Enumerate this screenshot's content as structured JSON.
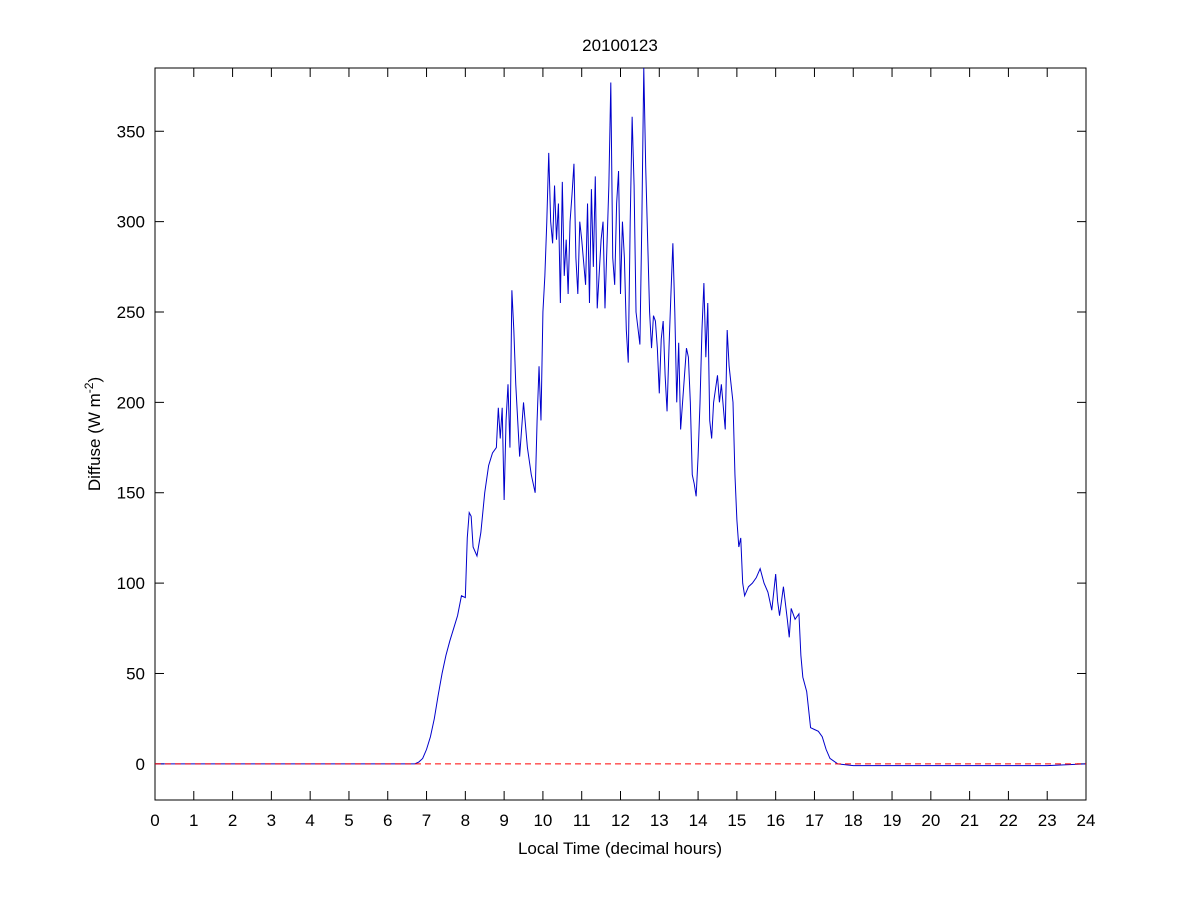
{
  "chart_data": {
    "type": "line",
    "title": "20100123",
    "xlabel": "Local Time (decimal hours)",
    "ylabel": {
      "text": "Diffuse (W m",
      "sup": "-2",
      "end": ")"
    },
    "xlim": [
      0,
      24
    ],
    "xticks": [
      0,
      1,
      2,
      3,
      4,
      5,
      6,
      7,
      8,
      9,
      10,
      11,
      12,
      13,
      14,
      15,
      16,
      17,
      18,
      19,
      20,
      21,
      22,
      23,
      24
    ],
    "ylim": [
      -20,
      385
    ],
    "yticks": [
      0,
      50,
      100,
      150,
      200,
      250,
      300,
      350
    ],
    "grid": false,
    "reference_line": {
      "y": 0,
      "color": "#ff0000",
      "style": "dashed"
    },
    "x": [
      0,
      6.5,
      6.7,
      6.8,
      6.9,
      7.0,
      7.1,
      7.2,
      7.3,
      7.4,
      7.5,
      7.6,
      7.7,
      7.8,
      7.9,
      8.0,
      8.05,
      8.1,
      8.15,
      8.2,
      8.3,
      8.4,
      8.5,
      8.6,
      8.7,
      8.8,
      8.85,
      8.9,
      8.95,
      9.0,
      9.05,
      9.1,
      9.15,
      9.2,
      9.25,
      9.3,
      9.4,
      9.5,
      9.6,
      9.7,
      9.8,
      9.85,
      9.9,
      9.95,
      10.0,
      10.05,
      10.1,
      10.15,
      10.2,
      10.25,
      10.3,
      10.35,
      10.4,
      10.45,
      10.5,
      10.55,
      10.6,
      10.65,
      10.7,
      10.75,
      10.8,
      10.85,
      10.9,
      10.95,
      11.0,
      11.1,
      11.15,
      11.2,
      11.25,
      11.3,
      11.35,
      11.4,
      11.5,
      11.55,
      11.6,
      11.7,
      11.75,
      11.8,
      11.85,
      11.9,
      11.95,
      12.0,
      12.05,
      12.1,
      12.15,
      12.2,
      12.25,
      12.3,
      12.35,
      12.4,
      12.5,
      12.55,
      12.6,
      12.65,
      12.7,
      12.75,
      12.8,
      12.85,
      12.9,
      12.95,
      13.0,
      13.05,
      13.1,
      13.15,
      13.2,
      13.25,
      13.3,
      13.35,
      13.4,
      13.45,
      13.5,
      13.55,
      13.6,
      13.7,
      13.75,
      13.8,
      13.85,
      13.9,
      13.95,
      14.0,
      14.05,
      14.1,
      14.15,
      14.2,
      14.25,
      14.3,
      14.35,
      14.4,
      14.5,
      14.55,
      14.6,
      14.7,
      14.75,
      14.8,
      14.9,
      14.95,
      15.0,
      15.05,
      15.1,
      15.15,
      15.2,
      15.3,
      15.4,
      15.5,
      15.6,
      15.7,
      15.8,
      15.9,
      16.0,
      16.05,
      16.1,
      16.2,
      16.3,
      16.35,
      16.4,
      16.5,
      16.6,
      16.65,
      16.7,
      16.8,
      16.9,
      17.0,
      17.1,
      17.2,
      17.3,
      17.4,
      17.6,
      18,
      20,
      22,
      23,
      24
    ],
    "series": [
      {
        "color": "#0000cc",
        "values": [
          0,
          0,
          0,
          1,
          3,
          8,
          15,
          25,
          38,
          50,
          60,
          68,
          75,
          82,
          93,
          92,
          125,
          139,
          137,
          120,
          115,
          128,
          150,
          165,
          172,
          175,
          197,
          180,
          197,
          146,
          190,
          210,
          175,
          262,
          240,
          210,
          170,
          200,
          175,
          160,
          150,
          190,
          220,
          190,
          250,
          270,
          300,
          338,
          300,
          288,
          320,
          290,
          310,
          255,
          322,
          270,
          290,
          260,
          300,
          315,
          332,
          280,
          260,
          300,
          290,
          265,
          310,
          255,
          318,
          275,
          325,
          252,
          290,
          300,
          252,
          320,
          377,
          280,
          265,
          310,
          328,
          260,
          300,
          280,
          240,
          222,
          300,
          358,
          320,
          250,
          232,
          300,
          385,
          330,
          290,
          250,
          230,
          248,
          245,
          230,
          205,
          235,
          245,
          215,
          195,
          230,
          260,
          288,
          250,
          200,
          233,
          185,
          200,
          230,
          225,
          200,
          160,
          155,
          148,
          170,
          200,
          240,
          266,
          225,
          255,
          190,
          180,
          200,
          215,
          200,
          210,
          185,
          240,
          220,
          200,
          160,
          135,
          120,
          125,
          100,
          93,
          98,
          100,
          103,
          108,
          100,
          95,
          85,
          105,
          90,
          82,
          98,
          80,
          70,
          86,
          80,
          83,
          60,
          48,
          40,
          20,
          19,
          18,
          15,
          8,
          3,
          0,
          -1,
          -1,
          -1,
          -1,
          0
        ]
      }
    ]
  }
}
